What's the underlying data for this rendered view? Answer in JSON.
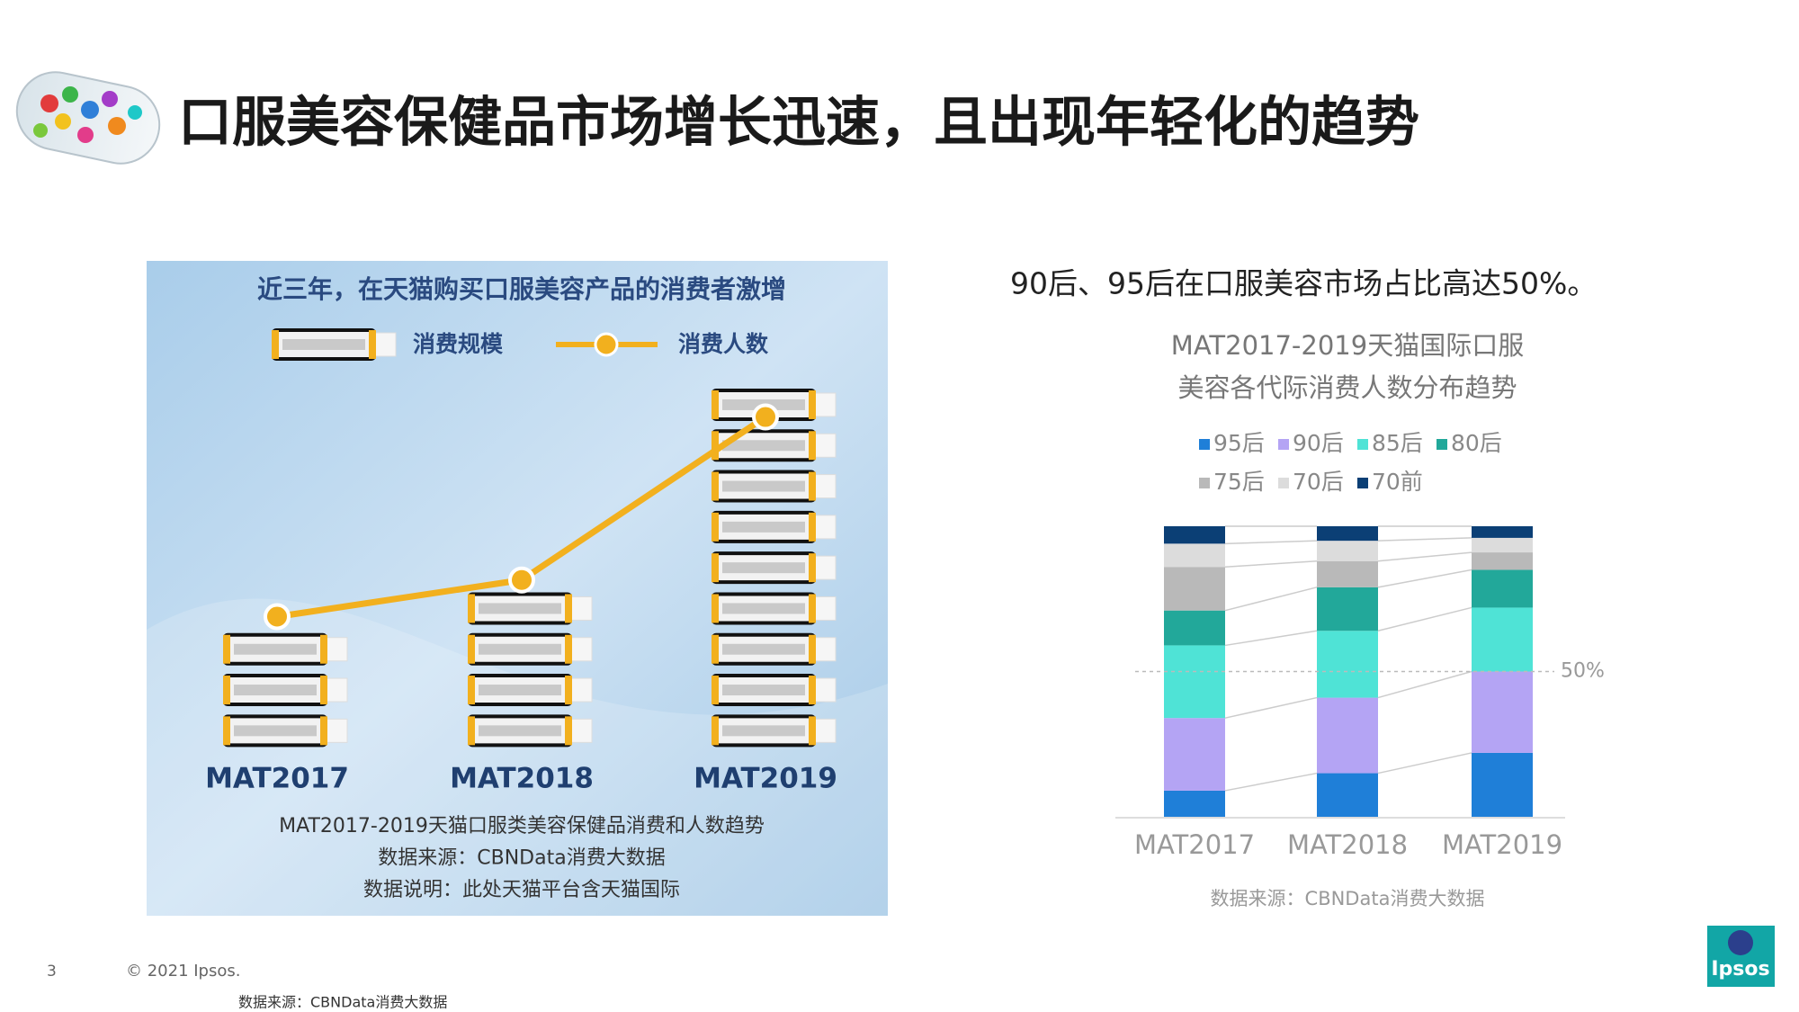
{
  "title": "口服美容保健品市场增长迅速，且出现年轻化的趋势",
  "right_heading": "90后、95后在口服美容市场占比高达50%。",
  "footer": {
    "page": "3",
    "copyright": "© 2021 Ipsos.",
    "source": "数据来源：CBNData消费大数据",
    "logo": "Ipsos"
  },
  "chart_data": [
    {
      "type": "combo",
      "title": "近三年，在天猫购买口服美容产品的消费者激增",
      "categories": [
        "MAT2017",
        "MAT2018",
        "MAT2019"
      ],
      "series": [
        {
          "name": "消费规模",
          "type": "pictogram",
          "color": "#dcdcdc",
          "values": [
            3,
            4,
            9
          ]
        },
        {
          "name": "消费人数",
          "type": "line",
          "color": "#f2b01e",
          "values": [
            3.3,
            4.2,
            8.2
          ]
        }
      ],
      "notes": [
        "MAT2017-2019天猫口服类美容保健品消费和人数趋势",
        "数据来源：CBNData消费大数据",
        "数据说明：此处天猫平台含天猫国际"
      ]
    },
    {
      "type": "stacked-bar",
      "title": [
        "MAT2017-2019天猫国际口服",
        "美容各代际消费人数分布趋势"
      ],
      "categories": [
        "MAT2017",
        "MAT2018",
        "MAT2019"
      ],
      "ylim": [
        0,
        100
      ],
      "series": [
        {
          "name": "95后",
          "color": "#1f7fd8",
          "values": [
            9,
            15,
            22
          ]
        },
        {
          "name": "90后",
          "color": "#b4a4f4",
          "values": [
            25,
            26,
            28
          ]
        },
        {
          "name": "85后",
          "color": "#4fe3d6",
          "values": [
            25,
            23,
            22
          ]
        },
        {
          "name": "80后",
          "color": "#22a89a",
          "values": [
            12,
            15,
            13
          ]
        },
        {
          "name": "75后",
          "color": "#b9b9b9",
          "values": [
            15,
            9,
            6
          ]
        },
        {
          "name": "70后",
          "color": "#dcdcdc",
          "values": [
            8,
            7,
            5
          ]
        },
        {
          "name": "70前",
          "color": "#0b3f75",
          "values": [
            6,
            5,
            4
          ]
        }
      ],
      "reference_line": {
        "value": 50,
        "label": "50%"
      },
      "source": "数据来源：CBNData消费大数据"
    }
  ]
}
